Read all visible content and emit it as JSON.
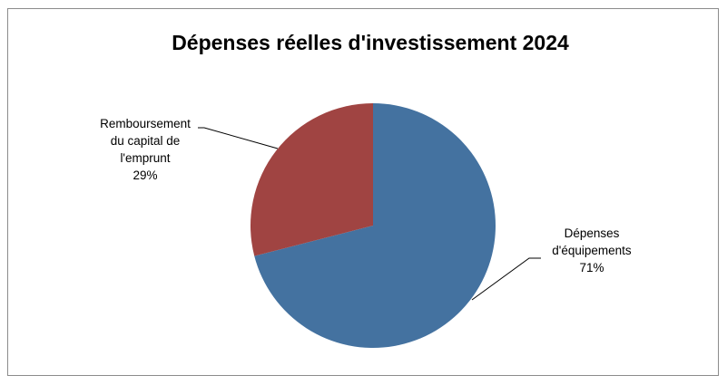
{
  "chart_data": {
    "type": "pie",
    "title": "Dépenses réelles d'investissement 2024",
    "categories": [
      "Dépenses d'équipements",
      "Remboursement du capital de l'emprunt"
    ],
    "values": [
      71,
      29
    ],
    "unit": "%",
    "colors": [
      "#4472A0",
      "#A04442"
    ],
    "legend": "none",
    "labels": [
      {
        "lines": [
          "Dépenses",
          "d'équipements"
        ],
        "value_text": "71%"
      },
      {
        "lines": [
          "Remboursement",
          "du capital de",
          "l'emprunt"
        ],
        "value_text": "29%"
      }
    ]
  }
}
